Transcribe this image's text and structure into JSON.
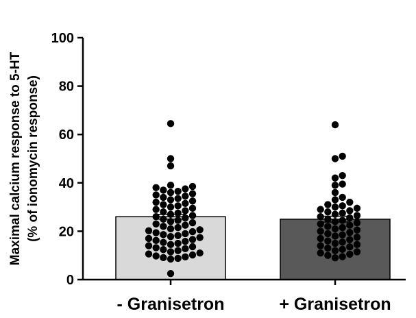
{
  "chart_data": {
    "type": "bar",
    "categories": [
      "- Granisetron",
      "+ Granisetron"
    ],
    "ylabel": [
      "Maximal calcium response to 5-HT",
      "(% of ionomycin response)"
    ],
    "ylim": [
      0,
      100
    ],
    "yticks": [
      0,
      20,
      40,
      60,
      80,
      100
    ],
    "grid": false,
    "series": [
      {
        "values": [
          26,
          25
        ],
        "error": [
          1.0,
          1.2
        ],
        "colors": [
          "#d9d9d9",
          "#595959"
        ]
      }
    ],
    "points": [
      [
        2.5,
        8.5,
        8.8,
        9.1,
        9.4,
        9.8,
        10.2,
        10.6,
        11.0,
        11.5,
        12.0,
        12.4,
        12.8,
        13.2,
        13.6,
        14.0,
        14.5,
        15.0,
        15.4,
        15.8,
        16.2,
        16.6,
        17.0,
        17.4,
        17.8,
        18.2,
        18.6,
        19.0,
        19.4,
        19.8,
        20.2,
        20.6,
        21.0,
        21.5,
        22.0,
        22.5,
        23.0,
        23.5,
        24.0,
        24.5,
        25.0,
        25.5,
        26.0,
        26.5,
        27.0,
        27.5,
        28.0,
        28.5,
        29.0,
        29.5,
        30.0,
        30.5,
        31.0,
        31.5,
        32.0,
        32.5,
        33.0,
        33.5,
        34.0,
        34.5,
        35.0,
        35.5,
        36.0,
        36.5,
        37.0,
        37.5,
        38.0,
        38.5,
        39.0,
        47.0,
        50.0,
        64.5
      ],
      [
        9.0,
        9.5,
        10.0,
        10.5,
        11.0,
        11.5,
        12.0,
        12.5,
        13.0,
        13.5,
        14.0,
        14.5,
        15.0,
        15.5,
        16.0,
        16.5,
        17.0,
        17.5,
        18.0,
        18.5,
        19.0,
        19.5,
        20.0,
        20.5,
        21.0,
        21.5,
        22.0,
        22.5,
        23.0,
        23.5,
        24.0,
        24.5,
        25.0,
        25.5,
        26.0,
        26.5,
        27.0,
        27.5,
        28.0,
        28.5,
        29.0,
        29.5,
        30.0,
        30.5,
        31.0,
        32.0,
        33.0,
        34.0,
        36.0,
        39.0,
        39.5,
        42.0,
        43.0,
        50.0,
        51.0,
        64.0
      ]
    ]
  }
}
